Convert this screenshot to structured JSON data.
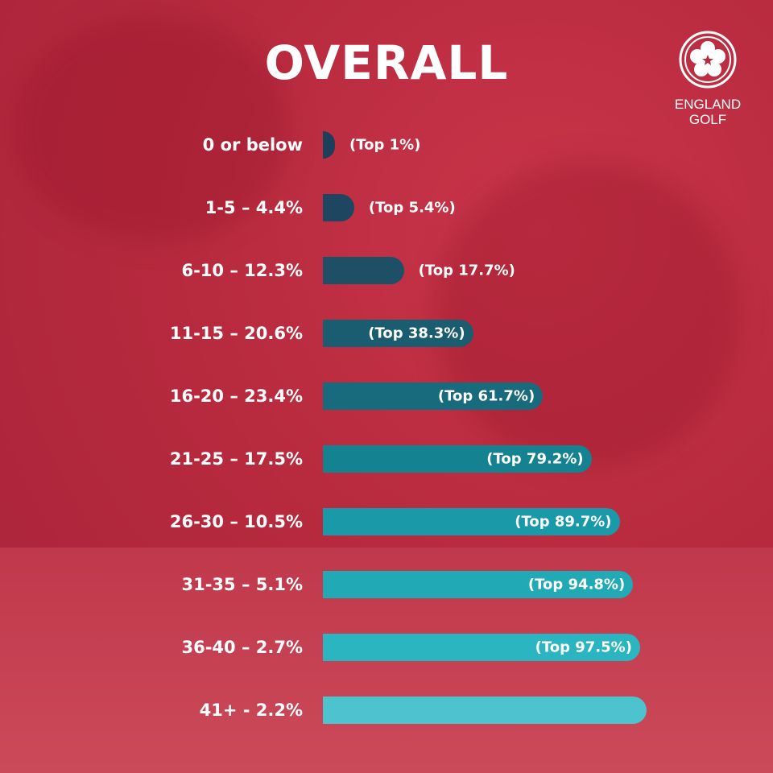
{
  "title": "OVERALL",
  "logo": {
    "line1": "ENGLAND",
    "line2": "GOLF"
  },
  "chart_data": {
    "type": "bar",
    "orientation": "horizontal",
    "categories": [
      "0 or below",
      "1-5 – 4.4%",
      "6-10 – 12.3%",
      "11-15 – 20.6%",
      "16-20 – 23.4%",
      "21-25 – 17.5%",
      "26-30 – 10.5%",
      "31-35 – 5.1%",
      "36-40 – 2.7%",
      "41+ - 2.2%"
    ],
    "handicap_bands": [
      "0 or below",
      "1-5",
      "6-10",
      "11-15",
      "16-20",
      "21-25",
      "26-30",
      "31-35",
      "36-40",
      "41+"
    ],
    "band_percent": [
      null,
      4.4,
      12.3,
      20.6,
      23.4,
      17.5,
      10.5,
      5.1,
      2.7,
      2.2
    ],
    "cumulative_top_percent": [
      1,
      5.4,
      17.7,
      38.3,
      61.7,
      79.2,
      89.7,
      94.8,
      97.5,
      100
    ],
    "data_labels": [
      "(Top 1%)",
      "(Top 5.4%)",
      "(Top 17.7%)",
      "(Top 38.3%)",
      "(Top 61.7%)",
      "(Top 79.2%)",
      "(Top 89.7%)",
      "(Top 94.8%)",
      "(Top 97.5%)",
      ""
    ],
    "colors": [
      "#1d3f5a",
      "#1f4661",
      "#1e4f67",
      "#1a5c70",
      "#176b7d",
      "#148291",
      "#1a9aa8",
      "#21a9b5",
      "#2ab5c1",
      "#4cc3ce"
    ],
    "title": "OVERALL",
    "xlabel": "",
    "ylabel": "",
    "grid": false,
    "legend": "none"
  }
}
